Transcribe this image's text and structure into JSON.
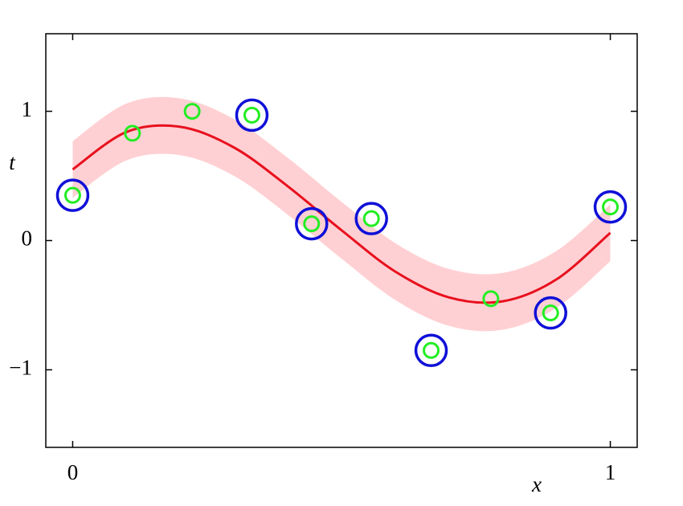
{
  "chart_data": {
    "type": "scatter",
    "x_label": "x",
    "y_label": "t",
    "xlim": [
      -0.05,
      1.05
    ],
    "ylim": [
      -1.6,
      1.6
    ],
    "xticks": [
      0,
      1
    ],
    "yticks": [
      {
        "value": -1,
        "label": "−1"
      },
      0,
      1
    ],
    "curve": {
      "color": "#e8101e",
      "band_color": "#ffd0d3",
      "x": [
        0,
        0.1,
        0.2,
        0.3,
        0.4,
        0.5,
        0.6,
        0.7,
        0.8,
        0.9,
        1.0
      ],
      "values": [
        0.55,
        0.84,
        0.88,
        0.72,
        0.42,
        0.08,
        -0.24,
        -0.44,
        -0.47,
        -0.3,
        0.06
      ],
      "upper": [
        0.77,
        1.06,
        1.1,
        0.94,
        0.64,
        0.3,
        -0.02,
        -0.22,
        -0.25,
        -0.08,
        0.28
      ],
      "lower": [
        0.33,
        0.62,
        0.66,
        0.5,
        0.2,
        -0.14,
        -0.46,
        -0.66,
        -0.69,
        -0.52,
        -0.16
      ]
    },
    "series": [
      {
        "color": "#1010d8",
        "marker": "large-ring",
        "x": [
          0,
          0.3333,
          0.4444,
          0.5556,
          0.6667,
          0.8889,
          1.0
        ],
        "values": [
          0.35,
          0.97,
          0.13,
          0.17,
          -0.85,
          -0.56,
          0.26
        ]
      },
      {
        "color": "#22ee22",
        "marker": "small-ring",
        "x": [
          0,
          0.1111,
          0.2222,
          0.3333,
          0.4444,
          0.5556,
          0.6667,
          0.7778,
          0.8889,
          1.0
        ],
        "values": [
          0.35,
          0.83,
          1.0,
          0.97,
          0.13,
          0.17,
          -0.85,
          -0.45,
          -0.56,
          0.26
        ]
      }
    ]
  }
}
